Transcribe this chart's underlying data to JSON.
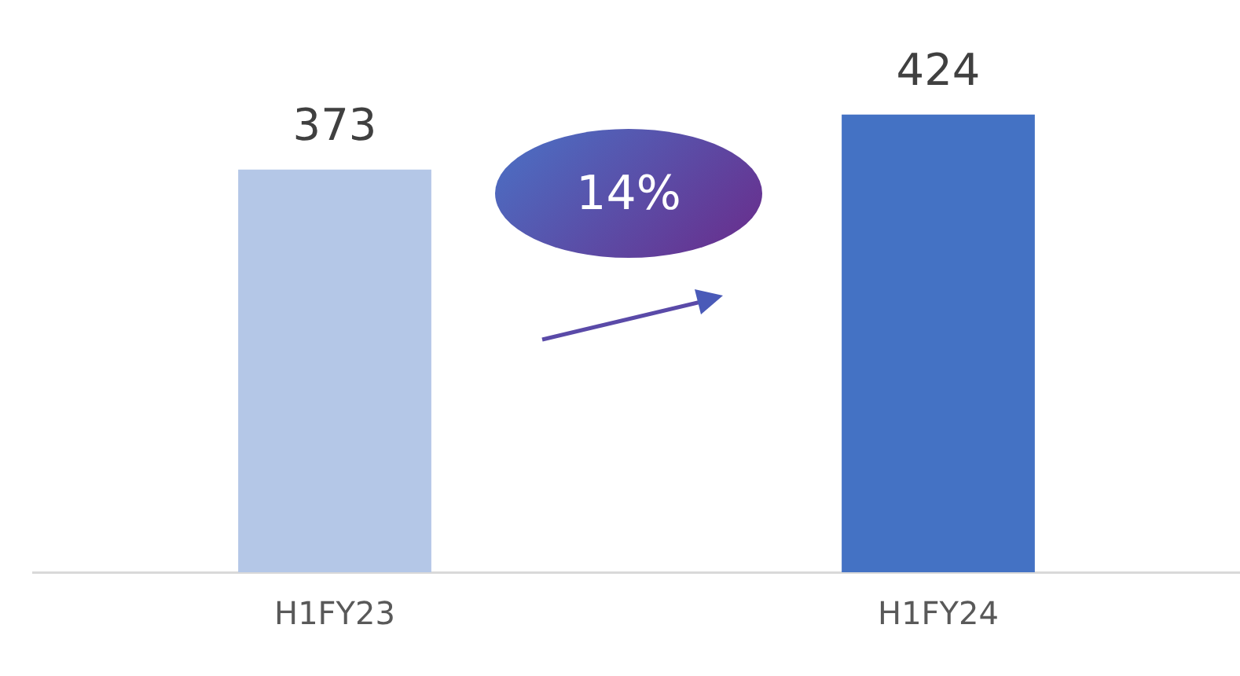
{
  "chart_data": {
    "type": "bar",
    "categories": [
      "H1FY23",
      "H1FY24"
    ],
    "values": [
      373,
      424
    ],
    "colors": [
      "#b4c7e7",
      "#4472c4"
    ],
    "data_labels": true,
    "relative": false,
    "grid": false,
    "legend": false,
    "annotations": [
      "14%"
    ]
  }
}
